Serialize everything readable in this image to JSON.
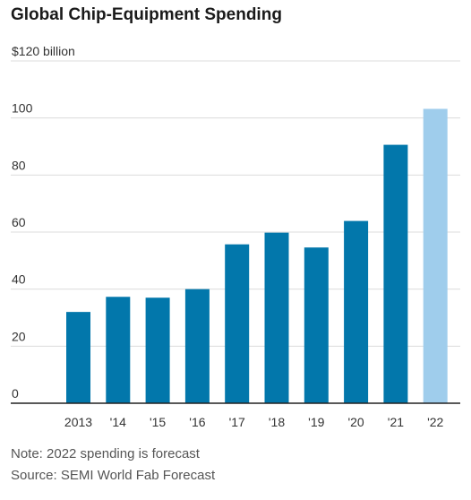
{
  "title": "Global Chip-Equipment Spending",
  "note": "Note: 2022 spending is forecast",
  "source": "Source: SEMI World Fab Forecast",
  "colors": {
    "bar": "#0277ab",
    "forecast": "#9fcdec",
    "grid": "#dcdcdc",
    "axis": "#222222"
  },
  "chart_data": {
    "type": "bar",
    "categories": [
      "2013",
      "'14",
      "'15",
      "'16",
      "'17",
      "'18",
      "'19",
      "'20",
      "'21",
      "'22"
    ],
    "values": [
      32,
      37.3,
      37,
      40,
      55.7,
      59.8,
      54.6,
      63.9,
      90.6,
      103.2
    ],
    "forecast": [
      false,
      false,
      false,
      false,
      false,
      false,
      false,
      false,
      false,
      true
    ],
    "ylim": [
      0,
      120
    ],
    "yticks": [
      0,
      20,
      40,
      60,
      80,
      100,
      120
    ],
    "ytick_labels": [
      "0",
      "20",
      "40",
      "60",
      "80",
      "100",
      "$120 billion"
    ],
    "grid": true
  }
}
